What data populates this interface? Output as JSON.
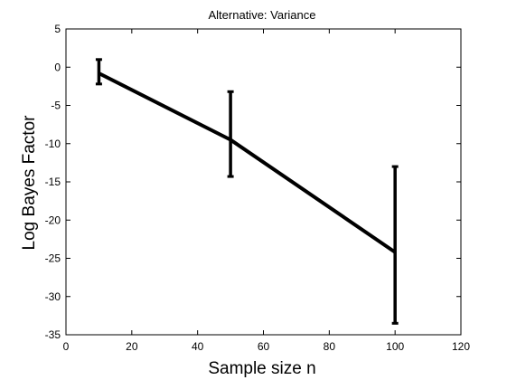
{
  "chart_data": {
    "type": "line",
    "title": "Alternative: Variance",
    "xlabel": "Sample size n",
    "ylabel": "Log Bayes Factor",
    "xlim": [
      0,
      120
    ],
    "ylim": [
      -35,
      5
    ],
    "xticks": [
      0,
      20,
      40,
      60,
      80,
      100,
      120
    ],
    "yticks": [
      5,
      0,
      -5,
      -10,
      -15,
      -20,
      -25,
      -30,
      -35
    ],
    "grid": false,
    "series": [
      {
        "x": [
          10,
          50,
          100
        ],
        "y": [
          -0.8,
          -9.5,
          -24.2
        ],
        "err_low": [
          -2.2,
          -14.3,
          -33.5
        ],
        "err_high": [
          1.0,
          -3.2,
          -13.0
        ]
      }
    ]
  }
}
